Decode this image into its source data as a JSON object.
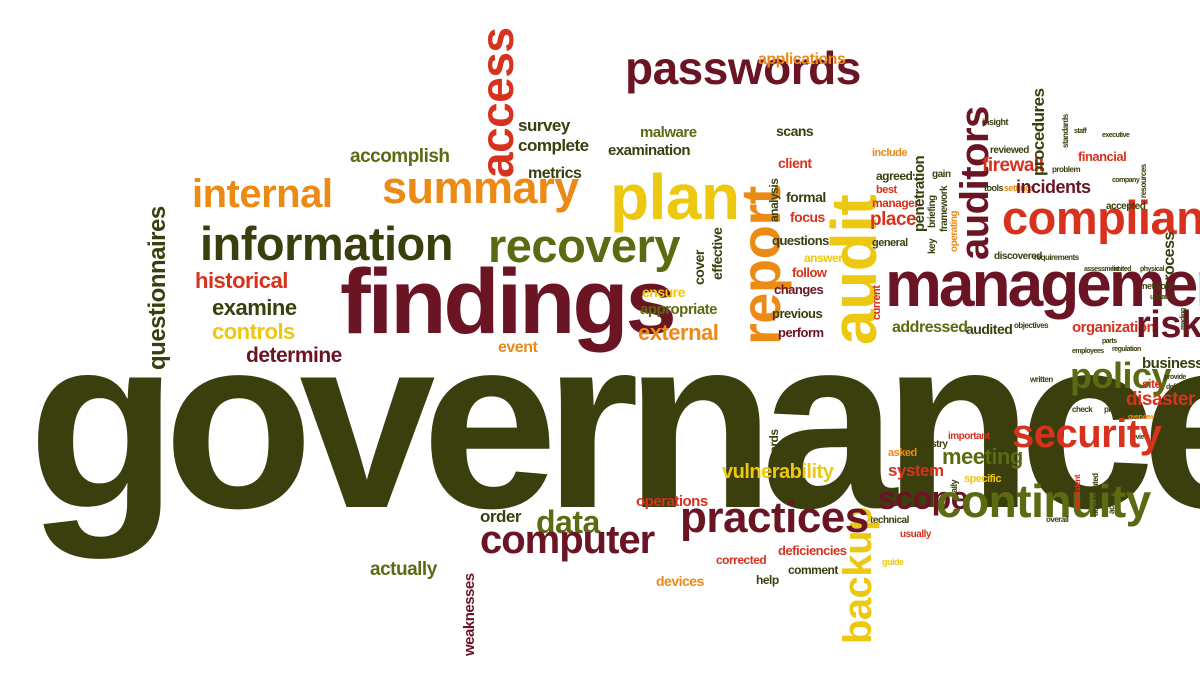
{
  "title_word": "governance",
  "colors": {
    "olive": "#3b3f0e",
    "maroon": "#6b1424",
    "red": "#d6321e",
    "orange": "#ec8a16",
    "yellow": "#edc810",
    "green": "#5b6b12"
  },
  "words": {
    "governance": "governance",
    "findings": "findings",
    "management": "management",
    "compliance": "compliance",
    "information": "information",
    "recovery": "recovery",
    "summary": "summary",
    "plan": "plan",
    "internal": "internal",
    "passwords": "passwords",
    "access": "access",
    "audit": "audit",
    "report": "report",
    "auditors": "auditors",
    "security": "security",
    "continuity": "continuity",
    "practices": "practices",
    "computer": "computer",
    "policy": "policy",
    "risk": "risk",
    "scope": "scope",
    "backup": "backup",
    "historical": "historical",
    "examine": "examine",
    "controls": "controls",
    "determine": "determine",
    "accomplish": "accomplish",
    "survey": "survey",
    "complete": "complete",
    "metrics": "metrics",
    "malware": "malware",
    "examination": "examination",
    "applications": "applications",
    "data": "data",
    "external": "external",
    "appropriate": "appropriate",
    "ensure": "ensure",
    "event": "event",
    "order": "order",
    "actually": "actually",
    "weaknesses": "weaknesses",
    "operations": "operations",
    "vulnerability": "vulnerability",
    "devices": "devices",
    "corrected": "corrected",
    "deficiencies": "deficiencies",
    "comment": "comment",
    "help": "help",
    "meeting": "meeting",
    "system": "system",
    "business": "business",
    "disaster": "disaster",
    "organization": "organization",
    "addressed": "addressed",
    "audited": "audited",
    "firewall": "firewall",
    "incidents": "incidents",
    "procedures": "procedures",
    "penetration": "penetration",
    "process": "process",
    "place": "place",
    "focus": "focus",
    "formal": "formal",
    "client": "client",
    "scans": "scans",
    "questions": "questions",
    "answers": "answers",
    "follow": "follow",
    "changes": "changes",
    "previous": "previous",
    "perform": "perform",
    "effective": "effective",
    "cover": "cover",
    "analysis": "analysis",
    "questionnaires": "questionnaires",
    "records": "records",
    "general": "general",
    "current": "current",
    "agreed": "agreed",
    "include": "include",
    "best": "best",
    "manager": "manager",
    "briefing": "briefing",
    "key": "key",
    "framework": "framework",
    "gain": "gain",
    "operating": "operating",
    "discovered": "discovered",
    "requirements": "requirements",
    "reviewed": "reviewed",
    "tools": "tools",
    "settings": "settings",
    "insight": "insight",
    "financial": "financial",
    "accepted": "accepted",
    "technical": "technical",
    "usually": "usually",
    "guide": "guide",
    "asked": "asked",
    "industry": "industry",
    "important": "important",
    "specific": "specific",
    "daily": "daily",
    "objectives": "objectives",
    "employees": "employees",
    "regulation": "regulation",
    "written": "written",
    "site": "site",
    "check": "check",
    "privacy": "privacy",
    "overall": "overall",
    "consistent": "consistent",
    "documented": "documented",
    "accordance": "accordance",
    "network": "network",
    "physical": "physical",
    "assessment": "assessment",
    "problem": "problem",
    "executive": "executive",
    "staff": "staff",
    "standards": "standards",
    "company": "company",
    "resources": "resources",
    "parts": "parts",
    "defined": "defined",
    "provide": "provide",
    "overview": "overview",
    "review": "review",
    "updated": "updated",
    "limited": "limited",
    "reading": "reading"
  }
}
